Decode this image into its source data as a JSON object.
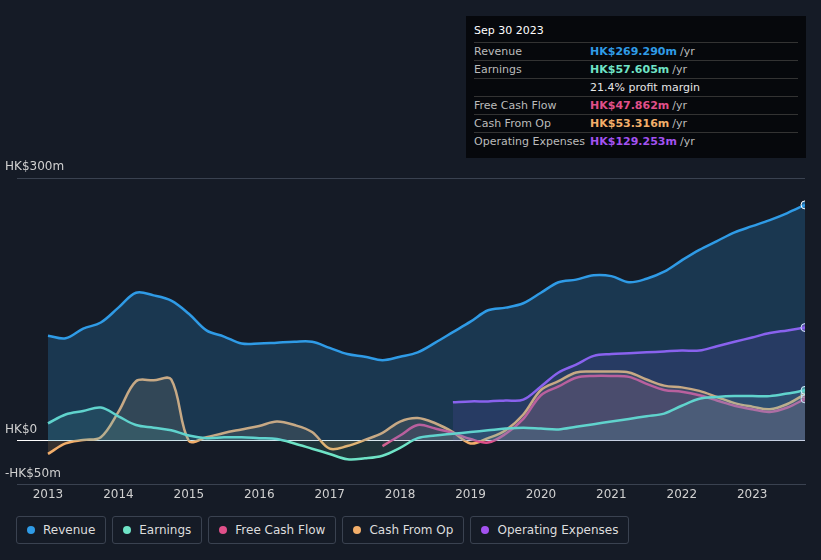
{
  "chart_data": {
    "type": "line",
    "x": [
      2013,
      2013.25,
      2013.5,
      2013.75,
      2014,
      2014.25,
      2014.5,
      2014.75,
      2015,
      2015.25,
      2015.5,
      2015.75,
      2016,
      2016.25,
      2016.5,
      2016.75,
      2017,
      2017.25,
      2017.5,
      2017.75,
      2018,
      2018.25,
      2018.5,
      2018.75,
      2019,
      2019.25,
      2019.5,
      2019.75,
      2020,
      2020.25,
      2020.5,
      2020.75,
      2021,
      2021.25,
      2021.5,
      2021.75,
      2022,
      2022.25,
      2022.5,
      2022.75,
      2023,
      2023.25,
      2023.5,
      2023.75
    ],
    "series": [
      {
        "name": "Revenue",
        "color": "#2f9be6",
        "values": [
          120,
          117,
          128,
          135,
          152,
          169,
          166,
          160,
          145,
          126,
          119,
          111,
          111,
          112,
          113,
          113,
          106,
          99,
          96,
          92,
          96,
          101,
          112,
          124,
          136,
          149,
          152,
          157,
          169,
          181,
          184,
          189,
          188,
          181,
          185,
          193,
          206,
          218,
          228,
          238,
          245,
          252,
          260,
          269.29
        ]
      },
      {
        "name": "Earnings",
        "color": "#6fe3c6",
        "values": [
          20,
          30,
          34,
          38,
          28,
          18,
          15,
          12,
          6,
          3,
          4,
          4,
          3,
          2,
          -3,
          -9,
          -15,
          -21,
          -20,
          -17,
          -8,
          3,
          6,
          8,
          10,
          12,
          14,
          15,
          14,
          13,
          16,
          19,
          22,
          25,
          28,
          31,
          40,
          48,
          50,
          51,
          51,
          51,
          54,
          57.605
        ]
      },
      {
        "name": "Free Cash Flow",
        "color": "#e0508a",
        "values": [
          null,
          null,
          null,
          null,
          null,
          null,
          null,
          null,
          null,
          null,
          null,
          null,
          null,
          null,
          null,
          null,
          null,
          null,
          null,
          -6,
          6,
          18,
          14,
          9,
          2,
          -2,
          8,
          25,
          52,
          62,
          72,
          74,
          74,
          73,
          65,
          58,
          56,
          52,
          46,
          40,
          36,
          33,
          38,
          47.862
        ]
      },
      {
        "name": "Cash From Op",
        "color": "#f2ae6a",
        "values": [
          -15,
          -3,
          1,
          4,
          33,
          68,
          69,
          70,
          0,
          4,
          9,
          13,
          17,
          22,
          18,
          10,
          -9,
          -6,
          1,
          9,
          22,
          26,
          20,
          10,
          -3,
          3,
          12,
          30,
          58,
          68,
          78,
          79,
          79,
          78,
          70,
          63,
          61,
          57,
          50,
          43,
          39,
          36,
          42,
          53.316
        ]
      },
      {
        "name": "Operating Expenses",
        "color": "#a352f0",
        "values": [
          null,
          null,
          null,
          null,
          null,
          null,
          null,
          null,
          null,
          null,
          null,
          null,
          null,
          null,
          null,
          null,
          null,
          null,
          null,
          null,
          null,
          null,
          null,
          44,
          45,
          45,
          46,
          47,
          62,
          78,
          87,
          97,
          99,
          100,
          101,
          102,
          103,
          103,
          108,
          113,
          118,
          123,
          126,
          129.253
        ]
      }
    ],
    "xlim": [
      2012.56,
      2023.75
    ],
    "xticks": [
      2013,
      2014,
      2015,
      2016,
      2017,
      2018,
      2019,
      2020,
      2021,
      2022,
      2023
    ],
    "ylim": [
      -50,
      300
    ],
    "yticks": [
      {
        "value": -50,
        "label": "-HK$50m"
      },
      {
        "value": 0,
        "label": "HK$0"
      },
      {
        "value": 300,
        "label": "HK$300m"
      }
    ],
    "grid": true,
    "legend": "bottom",
    "summary": {
      "date": "Sep 30 2023",
      "rows": [
        {
          "label": "Revenue",
          "value": "HK$269.290m",
          "unit": "/yr",
          "color": "#2f9be6"
        },
        {
          "label": "Earnings",
          "value": "HK$57.605m",
          "unit": "/yr",
          "color": "#6fe3c6"
        },
        {
          "text": "21.4% profit margin"
        },
        {
          "label": "Free Cash Flow",
          "value": "HK$47.862m",
          "unit": "/yr",
          "color": "#e0508a"
        },
        {
          "label": "Cash From Op",
          "value": "HK$53.316m",
          "unit": "/yr",
          "color": "#f2ae6a"
        },
        {
          "label": "Operating Expenses",
          "value": "HK$129.253m",
          "unit": "/yr",
          "color": "#a352f0"
        }
      ]
    }
  }
}
